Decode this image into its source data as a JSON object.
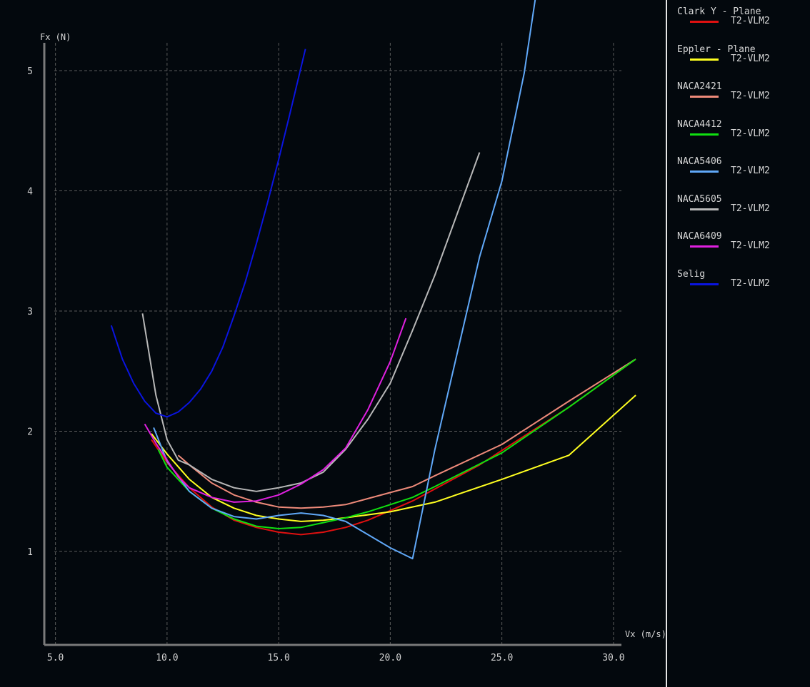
{
  "chart_data": {
    "type": "line",
    "xlabel": "Vx (m/s)",
    "ylabel": "Fx (N)",
    "xlim": [
      4.5,
      31
    ],
    "ylim": [
      0.4,
      5.25
    ],
    "x_ticks": [
      "5.0",
      "10.0",
      "15.0",
      "20.0",
      "25.0",
      "30.0"
    ],
    "x_tick_values": [
      5,
      10,
      15,
      20,
      25,
      30
    ],
    "y_ticks": [
      "1",
      "2",
      "3",
      "4",
      "5"
    ],
    "y_tick_values": [
      1,
      2,
      3,
      4,
      5
    ],
    "grid": true,
    "legend_position": "right",
    "series": [
      {
        "name": "Clark Y - Plane",
        "subtitle": "T2-VLM2",
        "color": "#e01010",
        "x": [
          9.3,
          10.0,
          11.0,
          12.0,
          13.0,
          14.0,
          15.0,
          16.0,
          17.0,
          18.0,
          19.0,
          20.0,
          21.0,
          22.0,
          24.0,
          26.0,
          28.0,
          31.0
        ],
        "y": [
          1.93,
          1.74,
          1.53,
          1.37,
          1.26,
          1.2,
          1.16,
          1.14,
          1.16,
          1.2,
          1.26,
          1.34,
          1.42,
          1.52,
          1.72,
          1.96,
          2.2,
          2.6
        ]
      },
      {
        "name": "Eppler - Plane",
        "subtitle": "T2-VLM2",
        "color": "#ffff20",
        "x": [
          9.3,
          10.0,
          11.0,
          12.0,
          13.0,
          14.0,
          15.0,
          16.0,
          17.0,
          18.0,
          20.0,
          22.0,
          25.0,
          28.0,
          31.0
        ],
        "y": [
          1.98,
          1.81,
          1.6,
          1.45,
          1.36,
          1.3,
          1.27,
          1.25,
          1.26,
          1.28,
          1.33,
          1.41,
          1.6,
          1.8,
          2.3
        ]
      },
      {
        "name": "NACA2421",
        "subtitle": "T2-VLM2",
        "color": "#ee8a7a",
        "x": [
          10.5,
          11.0,
          12.0,
          13.0,
          14.0,
          15.0,
          16.0,
          17.0,
          18.0,
          19.0,
          20.0,
          21.0,
          22.0,
          25.0,
          28.0,
          31.0
        ],
        "y": [
          1.8,
          1.72,
          1.57,
          1.47,
          1.41,
          1.37,
          1.36,
          1.37,
          1.39,
          1.44,
          1.49,
          1.54,
          1.63,
          1.89,
          2.25,
          2.6
        ]
      },
      {
        "name": "NACA4412",
        "subtitle": "T2-VLM2",
        "color": "#10e010",
        "x": [
          9.6,
          10.0,
          11.0,
          12.0,
          13.0,
          14.0,
          15.0,
          16.0,
          17.0,
          18.0,
          19.0,
          20.0,
          21.0,
          22.0,
          25.0,
          28.0,
          31.0
        ],
        "y": [
          1.85,
          1.7,
          1.5,
          1.36,
          1.27,
          1.21,
          1.19,
          1.2,
          1.24,
          1.28,
          1.33,
          1.39,
          1.45,
          1.54,
          1.82,
          2.2,
          2.6
        ]
      },
      {
        "name": "NACA5406",
        "subtitle": "T2-VLM2",
        "color": "#60a8f8",
        "x": [
          9.4,
          10.0,
          11.0,
          12.0,
          13.0,
          14.0,
          15.0,
          16.0,
          17.0,
          18.0,
          19.0,
          20.0,
          21.0,
          22.0,
          23.0,
          24.0,
          25.0,
          26.0,
          26.5
        ],
        "y": [
          2.03,
          1.75,
          1.5,
          1.36,
          1.29,
          1.27,
          1.3,
          1.32,
          1.3,
          1.25,
          1.14,
          1.03,
          0.94,
          1.85,
          2.65,
          3.45,
          4.08,
          4.98,
          5.6
        ]
      },
      {
        "name": "NACA5605",
        "subtitle": "T2-VLM2",
        "color": "#b8b8b8",
        "x": [
          8.9,
          9.5,
          10.0,
          10.5,
          11.0,
          12.0,
          13.0,
          14.0,
          15.0,
          16.0,
          17.0,
          18.0,
          19.0,
          20.0,
          21.0,
          22.0,
          24.0
        ],
        "y": [
          2.98,
          2.3,
          1.93,
          1.76,
          1.72,
          1.6,
          1.53,
          1.5,
          1.53,
          1.57,
          1.66,
          1.85,
          2.1,
          2.4,
          2.84,
          3.3,
          4.32
        ]
      },
      {
        "name": "NACA6409",
        "subtitle": "T2-VLM2",
        "color": "#e020e0",
        "x": [
          9.0,
          9.5,
          10.0,
          10.5,
          11.0,
          12.0,
          13.0,
          14.0,
          15.0,
          16.0,
          17.0,
          18.0,
          19.0,
          20.0,
          20.7
        ],
        "y": [
          2.06,
          1.9,
          1.76,
          1.62,
          1.53,
          1.45,
          1.41,
          1.42,
          1.47,
          1.56,
          1.68,
          1.86,
          2.18,
          2.58,
          2.94
        ]
      },
      {
        "name": "Selig",
        "subtitle": "T2-VLM2",
        "color": "#0a14e0",
        "x": [
          7.5,
          8.0,
          8.5,
          9.0,
          9.5,
          10.0,
          10.5,
          11.0,
          11.5,
          12.0,
          12.5,
          13.0,
          13.5,
          14.0,
          14.5,
          15.0,
          15.5,
          16.2
        ],
        "y": [
          2.88,
          2.6,
          2.4,
          2.25,
          2.15,
          2.12,
          2.16,
          2.24,
          2.35,
          2.5,
          2.7,
          2.96,
          3.24,
          3.56,
          3.9,
          4.26,
          4.64,
          5.18
        ]
      }
    ]
  }
}
